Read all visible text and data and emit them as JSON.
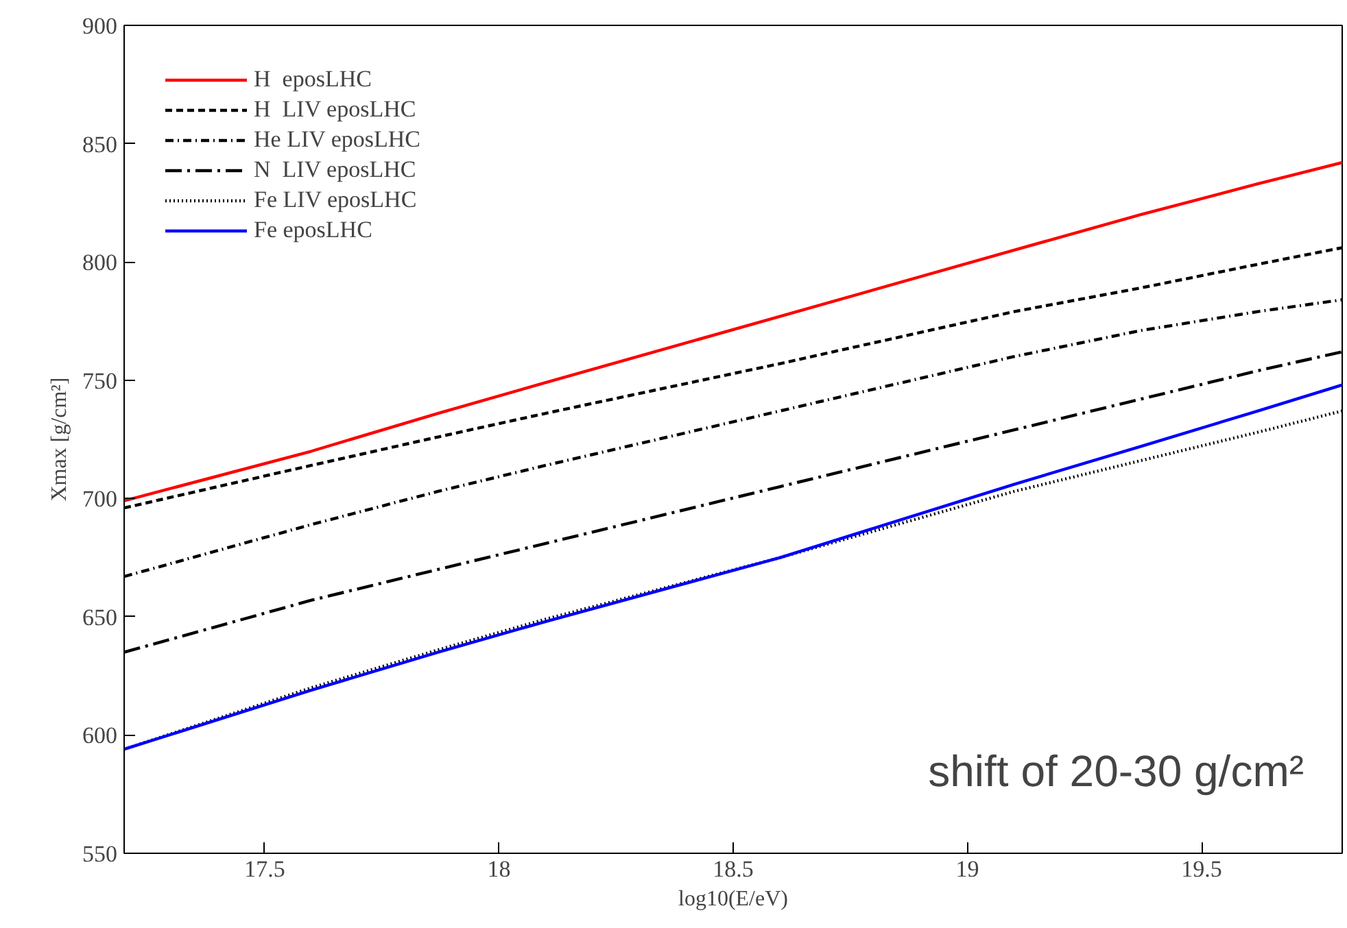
{
  "chart_data": {
    "type": "line",
    "xlabel": "log10(E/eV)",
    "ylabel": "Xmax [g/cm²]",
    "xlim": [
      17.2,
      19.8
    ],
    "ylim": [
      550,
      900
    ],
    "xticks": [
      17.5,
      18,
      18.5,
      19,
      19.5
    ],
    "yticks": [
      550,
      600,
      650,
      700,
      750,
      800,
      850,
      900
    ],
    "grid": false,
    "legend": "top left",
    "marker": "none",
    "x": [
      17.2,
      17.6,
      17.87,
      18.1,
      18.6,
      19.1,
      19.37,
      19.62,
      19.8
    ],
    "series": [
      {
        "name": "H  eposLHC",
        "color": "#ff0000",
        "line_style": "solid",
        "values": [
          699,
          720,
          736,
          749,
          777,
          805,
          820,
          833,
          842
        ]
      },
      {
        "name": "H  LIV eposLHC",
        "color": "#000000",
        "line_style": "dashed",
        "values": [
          696,
          714,
          726,
          736,
          757,
          779,
          789,
          799,
          806
        ]
      },
      {
        "name": "He LIV eposLHC",
        "color": "#000000",
        "line_style": "dashdot",
        "values": [
          667,
          689,
          703,
          714,
          737,
          760,
          771,
          779,
          784
        ]
      },
      {
        "name": "N  LIV eposLHC",
        "color": "#000000",
        "line_style": "longdashdot",
        "values": [
          635,
          657,
          670,
          681,
          705,
          729,
          742,
          754,
          762
        ]
      },
      {
        "name": "Fe LIV eposLHC",
        "color": "#000000",
        "line_style": "dotted",
        "values": [
          594,
          620,
          636,
          649,
          675,
          703,
          716,
          728,
          737
        ]
      },
      {
        "name": "Fe eposLHC",
        "color": "#0000ff",
        "line_style": "solid",
        "values": [
          594,
          619,
          635,
          648,
          675,
          706,
          722,
          737,
          748
        ]
      }
    ],
    "annotations": [
      "shift of 20-30 g/cm²"
    ]
  }
}
